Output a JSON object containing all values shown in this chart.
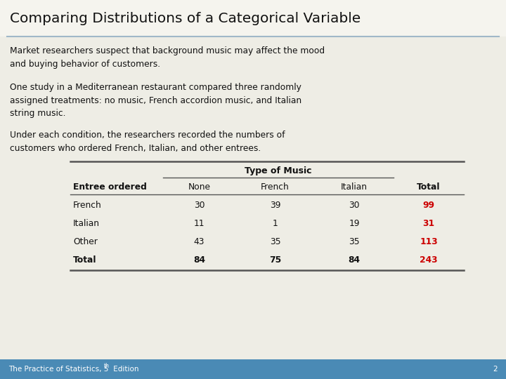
{
  "title": "Comparing Distributions of a Categorical Variable",
  "bg_color": "#eeede5",
  "title_bg": "#f5f4ee",
  "footer_bg": "#4a8ab5",
  "footer_page": "2",
  "paragraph1": "Market researchers suspect that background music may affect the mood\nand buying behavior of customers.",
  "paragraph2": "One study in a Mediterranean restaurant compared three randomly\nassigned treatments: no music, French accordion music, and Italian\nstring music.",
  "paragraph3": "Under each condition, the researchers recorded the numbers of\ncustomers who ordered French, Italian, and other entrees.",
  "table_header_group": "Type of Music",
  "col_headers": [
    "Entree ordered",
    "None",
    "French",
    "Italian",
    "Total"
  ],
  "rows": [
    [
      "French",
      "30",
      "39",
      "30",
      "99"
    ],
    [
      "Italian",
      "11",
      "1",
      "19",
      "31"
    ],
    [
      "Other",
      "43",
      "35",
      "35",
      "113"
    ],
    [
      "Total",
      "84",
      "75",
      "84",
      "243"
    ]
  ],
  "title_underline_color": "#a0b8c8",
  "table_line_color": "#555555",
  "text_color": "#111111",
  "total_color": "#cc0000"
}
